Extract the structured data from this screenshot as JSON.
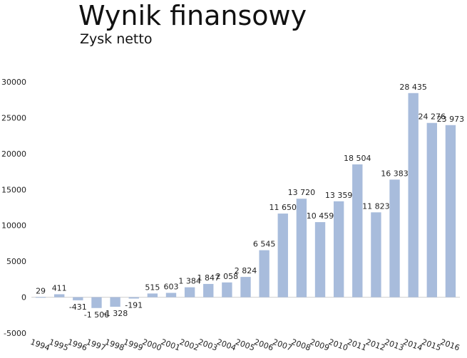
{
  "chart_data": {
    "type": "bar",
    "title": "Wynik finansowy",
    "subtitle": "Zysk netto",
    "xlabel": "",
    "ylabel": "",
    "ylim": [
      -5000,
      30000
    ],
    "yticks": [
      -5000,
      0,
      5000,
      10000,
      15000,
      20000,
      25000,
      30000
    ],
    "grid": false,
    "legend": "none",
    "bar_color": "#a8bcdc",
    "categories": [
      "1994",
      "1995",
      "1996",
      "1997",
      "1998",
      "1999",
      "2000",
      "2001",
      "2002",
      "2003",
      "2004",
      "2005",
      "2006",
      "2007",
      "2008",
      "2009",
      "2010",
      "2011",
      "2012",
      "2013",
      "2014",
      "2015",
      "2016"
    ],
    "values": [
      29,
      411,
      -431,
      -1506,
      -1328,
      -191,
      515,
      603,
      1384,
      1847,
      2058,
      2824,
      6545,
      11650,
      13720,
      10459,
      13359,
      18504,
      11823,
      16383,
      28435,
      24276,
      23973
    ],
    "labels": [
      "29",
      "411",
      "-431",
      "-1 506",
      "-1 328",
      "-191",
      "515",
      "603",
      "1 384",
      "1 847",
      "2 058",
      "2 824",
      "6 545",
      "11 650",
      "13 720",
      "10 459",
      "13 359",
      "18 504",
      "11 823",
      "16 383",
      "28 435",
      "24 276",
      "23 973"
    ]
  }
}
